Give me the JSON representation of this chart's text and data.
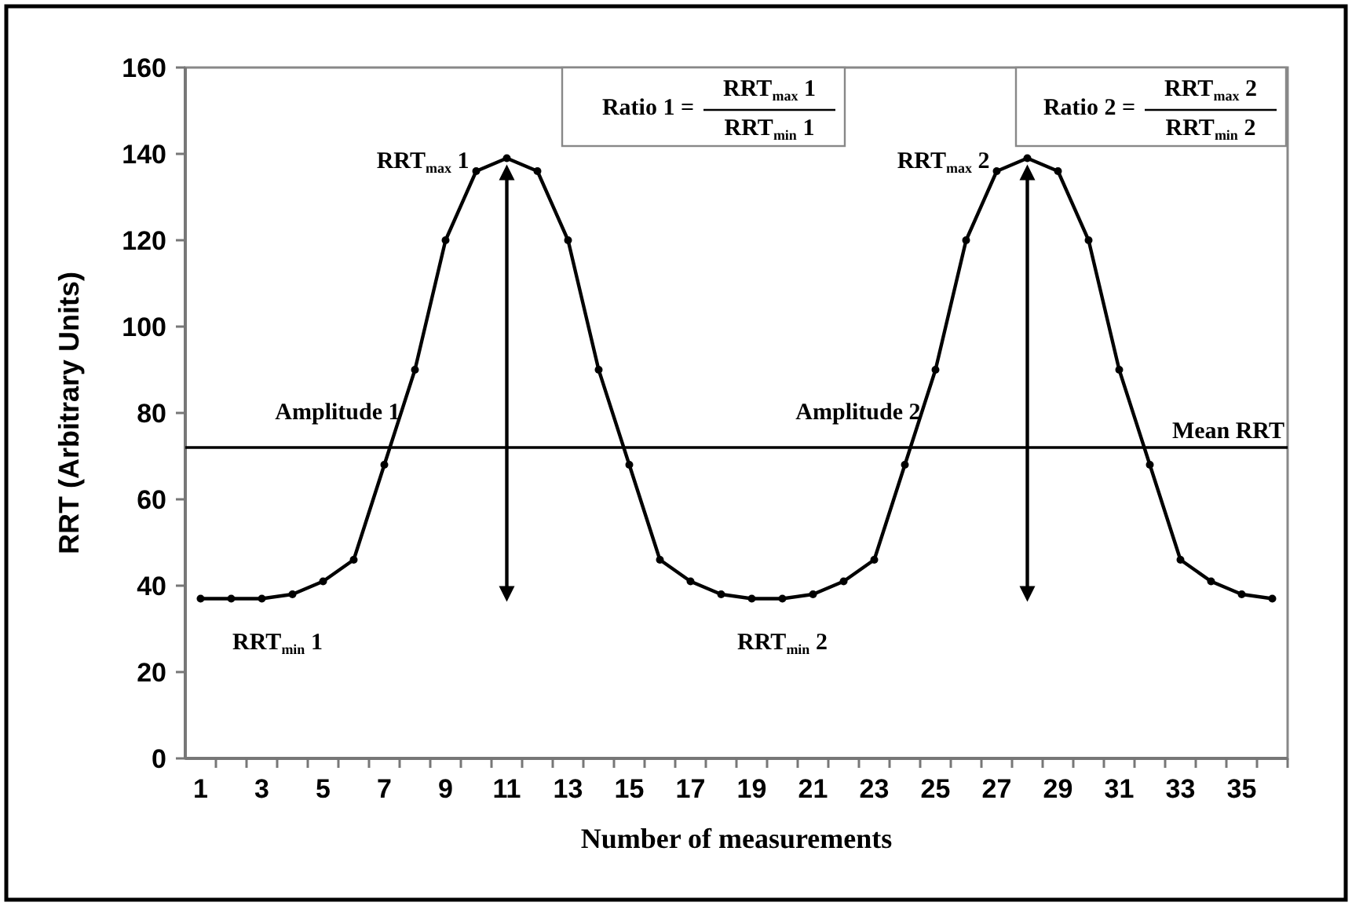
{
  "chart_data": {
    "type": "line",
    "xlabel": "Number of measurements",
    "ylabel": "RRT (Arbitrary Units)",
    "x": [
      1,
      2,
      3,
      4,
      5,
      6,
      7,
      8,
      9,
      10,
      11,
      12,
      13,
      14,
      15,
      16,
      17,
      18,
      19,
      20,
      21,
      22,
      23,
      24,
      25,
      26,
      27,
      28,
      29,
      30,
      31,
      32,
      33,
      34,
      35,
      36
    ],
    "xlim": [
      0.5,
      36.5
    ],
    "xticks": [
      1,
      3,
      5,
      7,
      9,
      11,
      13,
      15,
      17,
      19,
      21,
      23,
      25,
      27,
      29,
      31,
      33,
      35
    ],
    "series": [
      {
        "color": "#000000",
        "values": [
          37,
          37,
          37,
          38,
          41,
          46,
          68,
          90,
          120,
          136,
          139,
          136,
          120,
          90,
          68,
          46,
          41,
          38,
          37,
          37,
          38,
          41,
          46,
          68,
          90,
          120,
          136,
          139,
          136,
          120,
          90,
          68,
          46,
          41,
          38,
          37
        ]
      }
    ],
    "ylim": [
      0,
      160
    ],
    "yticks": [
      0,
      20,
      40,
      60,
      80,
      100,
      120,
      140,
      160
    ],
    "marker": "circle",
    "line_style": "solid",
    "ref_lines": [
      {
        "axis": "y",
        "value": 72,
        "label": "Mean RRT",
        "color": "#000000"
      }
    ],
    "annotations": [
      {
        "text": "RRT$_{max}$ 1",
        "x": 11,
        "y": 139
      },
      {
        "text": "RRT$_{min}$ 1",
        "x": 3,
        "y": 37
      },
      "Amplitude 1",
      {
        "text": "RRT$_{max}$ 2",
        "x": 28,
        "y": 139
      },
      {
        "text": "RRT$_{min}$ 2",
        "x": 20,
        "y": 37
      },
      "Amplitude 2",
      "Ratio 1 =",
      "RRT$_{max}$ 1",
      "RRT$_{min}$ 1",
      "Ratio 2 =",
      "RRT$_{max}$ 2",
      "RRT$_{min}$ 2"
    ]
  }
}
